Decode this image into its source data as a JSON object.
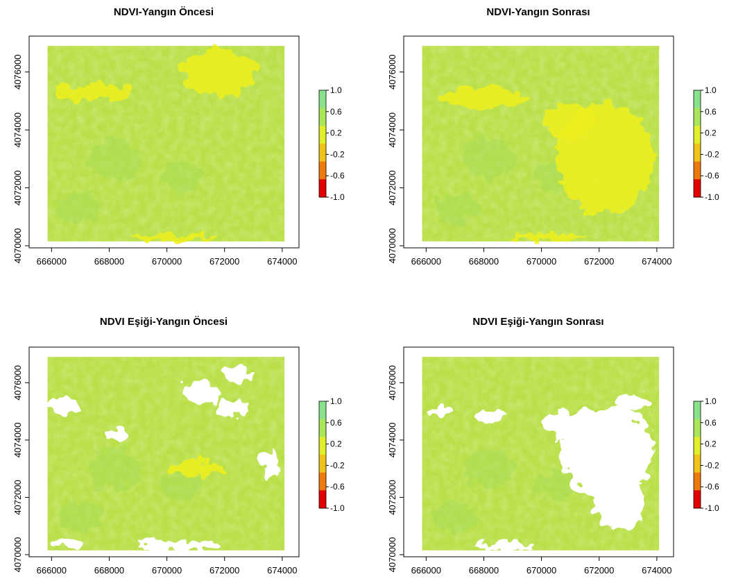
{
  "figure": {
    "colors": {
      "background": "#ffffff",
      "veg_high": "#b9e04a",
      "veg_mid": "#cde63c",
      "veg_light": "#a6dc58",
      "veg_teal": "#8fd27a",
      "yellow": "#eef01a",
      "masked": "#ffffff"
    }
  },
  "chart_data": [
    {
      "type": "heatmap",
      "title": "NDVI-Yangın Öncesi",
      "xlim": [
        665800,
        674100
      ],
      "ylim": [
        4070000,
        4077000
      ],
      "x_ticks": [
        666000,
        668000,
        670000,
        672000,
        674000
      ],
      "y_ticks": [
        4070000,
        4072000,
        4074000,
        4076000
      ],
      "x_tick_labels": [
        "666000",
        "668000",
        "670000",
        "672000",
        "674000"
      ],
      "y_tick_labels": [
        "4070000",
        "4072000",
        "4074000",
        "4076000"
      ],
      "legend": {
        "ticks": [
          1.0,
          0.6,
          0.2,
          -0.2,
          -0.6,
          -1.0
        ],
        "labels": [
          "1.0",
          "0.6",
          "0.2",
          "-0.2",
          "-0.6",
          "-1.0"
        ],
        "colors": [
          "#8be28c",
          "#a9e65a",
          "#e2ee2a",
          "#f0c21a",
          "#ee7a0e",
          "#e50000"
        ]
      },
      "threshold_masked": false,
      "masked_regions": [],
      "yellow_regions": [
        {
          "cx": 671800,
          "cy": 4076000,
          "rx": 1300,
          "ry": 800
        },
        {
          "cx": 667500,
          "cy": 4075300,
          "rx": 1400,
          "ry": 300
        },
        {
          "cx": 670200,
          "cy": 4070300,
          "rx": 1500,
          "ry": 150
        }
      ]
    },
    {
      "type": "heatmap",
      "title": "NDVI-Yangın Sonrası",
      "xlim": [
        665800,
        674100
      ],
      "ylim": [
        4070000,
        4077000
      ],
      "x_ticks": [
        666000,
        668000,
        670000,
        672000,
        674000
      ],
      "y_ticks": [
        4070000,
        4072000,
        4074000,
        4076000
      ],
      "x_tick_labels": [
        "666000",
        "668000",
        "670000",
        "672000",
        "674000"
      ],
      "y_tick_labels": [
        "4070000",
        "4072000",
        "4074000",
        "4076000"
      ],
      "legend": {
        "ticks": [
          1.0,
          0.6,
          0.2,
          -0.2,
          -0.6,
          -1.0
        ],
        "labels": [
          "1.0",
          "0.6",
          "0.2",
          "-0.2",
          "-0.6",
          "-1.0"
        ],
        "colors": [
          "#8be28c",
          "#a9e65a",
          "#e2ee2a",
          "#f0c21a",
          "#ee7a0e",
          "#e50000"
        ]
      },
      "threshold_masked": false,
      "masked_regions": [],
      "yellow_regions": [
        {
          "cx": 672200,
          "cy": 4073000,
          "rx": 1700,
          "ry": 1900
        },
        {
          "cx": 671000,
          "cy": 4074300,
          "rx": 900,
          "ry": 600
        },
        {
          "cx": 668000,
          "cy": 4075100,
          "rx": 1500,
          "ry": 350
        },
        {
          "cx": 670200,
          "cy": 4070300,
          "rx": 1300,
          "ry": 150
        }
      ]
    },
    {
      "type": "heatmap",
      "title": "NDVI Eşiği-Yangın Öncesi",
      "xlim": [
        665800,
        674100
      ],
      "ylim": [
        4070000,
        4077000
      ],
      "x_ticks": [
        666000,
        668000,
        670000,
        672000,
        674000
      ],
      "y_ticks": [
        4070000,
        4072000,
        4074000,
        4076000
      ],
      "x_tick_labels": [
        "666000",
        "668000",
        "670000",
        "672000",
        "674000"
      ],
      "y_tick_labels": [
        "4070000",
        "4072000",
        "4074000",
        "4076000"
      ],
      "legend": {
        "ticks": [
          1.0,
          0.6,
          0.2,
          -0.2,
          -0.6,
          -1.0
        ],
        "labels": [
          "1.0",
          "0.6",
          "0.2",
          "-0.2",
          "-0.6",
          "-1.0"
        ],
        "colors": [
          "#8be28c",
          "#a9e65a",
          "#e2ee2a",
          "#f0c21a",
          "#ee7a0e",
          "#e50000"
        ]
      },
      "threshold_masked": true,
      "masked_regions": [
        {
          "cx": 671200,
          "cy": 4075700,
          "rx": 700,
          "ry": 400
        },
        {
          "cx": 672400,
          "cy": 4076300,
          "rx": 500,
          "ry": 300
        },
        {
          "cx": 666400,
          "cy": 4075200,
          "rx": 500,
          "ry": 250
        },
        {
          "cx": 672300,
          "cy": 4075100,
          "rx": 600,
          "ry": 300
        },
        {
          "cx": 668300,
          "cy": 4074200,
          "rx": 400,
          "ry": 200
        },
        {
          "cx": 670400,
          "cy": 4070300,
          "rx": 1400,
          "ry": 200
        },
        {
          "cx": 666600,
          "cy": 4070400,
          "rx": 600,
          "ry": 150
        },
        {
          "cx": 673600,
          "cy": 4073100,
          "rx": 300,
          "ry": 500
        }
      ],
      "yellow_regions": [
        {
          "cx": 671000,
          "cy": 4073000,
          "rx": 900,
          "ry": 300
        }
      ]
    },
    {
      "type": "heatmap",
      "title": "NDVI Eşiği-Yangın Sonrası",
      "xlim": [
        665800,
        674100
      ],
      "ylim": [
        4070000,
        4077000
      ],
      "x_ticks": [
        666000,
        668000,
        670000,
        672000,
        674000
      ],
      "y_ticks": [
        4070000,
        4072000,
        4074000,
        4076000
      ],
      "x_tick_labels": [
        "666000",
        "668000",
        "670000",
        "672000",
        "674000"
      ],
      "y_tick_labels": [
        "4070000",
        "4072000",
        "4074000",
        "4076000"
      ],
      "legend": {
        "ticks": [
          1.0,
          0.6,
          0.2,
          -0.2,
          -0.6,
          -1.0
        ],
        "labels": [
          "1.0",
          "0.6",
          "0.2",
          "-0.2",
          "-0.6",
          "-1.0"
        ],
        "colors": [
          "#8be28c",
          "#a9e65a",
          "#e2ee2a",
          "#f0c21a",
          "#ee7a0e",
          "#e50000"
        ]
      },
      "threshold_masked": true,
      "masked_regions": [
        {
          "cx": 672300,
          "cy": 4073600,
          "rx": 1600,
          "ry": 1600
        },
        {
          "cx": 671000,
          "cy": 4074500,
          "rx": 900,
          "ry": 500
        },
        {
          "cx": 672700,
          "cy": 4071800,
          "rx": 900,
          "ry": 900
        },
        {
          "cx": 673200,
          "cy": 4075300,
          "rx": 600,
          "ry": 300
        },
        {
          "cx": 668200,
          "cy": 4074800,
          "rx": 500,
          "ry": 200
        },
        {
          "cx": 666400,
          "cy": 4075000,
          "rx": 400,
          "ry": 200
        },
        {
          "cx": 668800,
          "cy": 4070300,
          "rx": 1000,
          "ry": 150
        }
      ],
      "yellow_regions": []
    }
  ]
}
